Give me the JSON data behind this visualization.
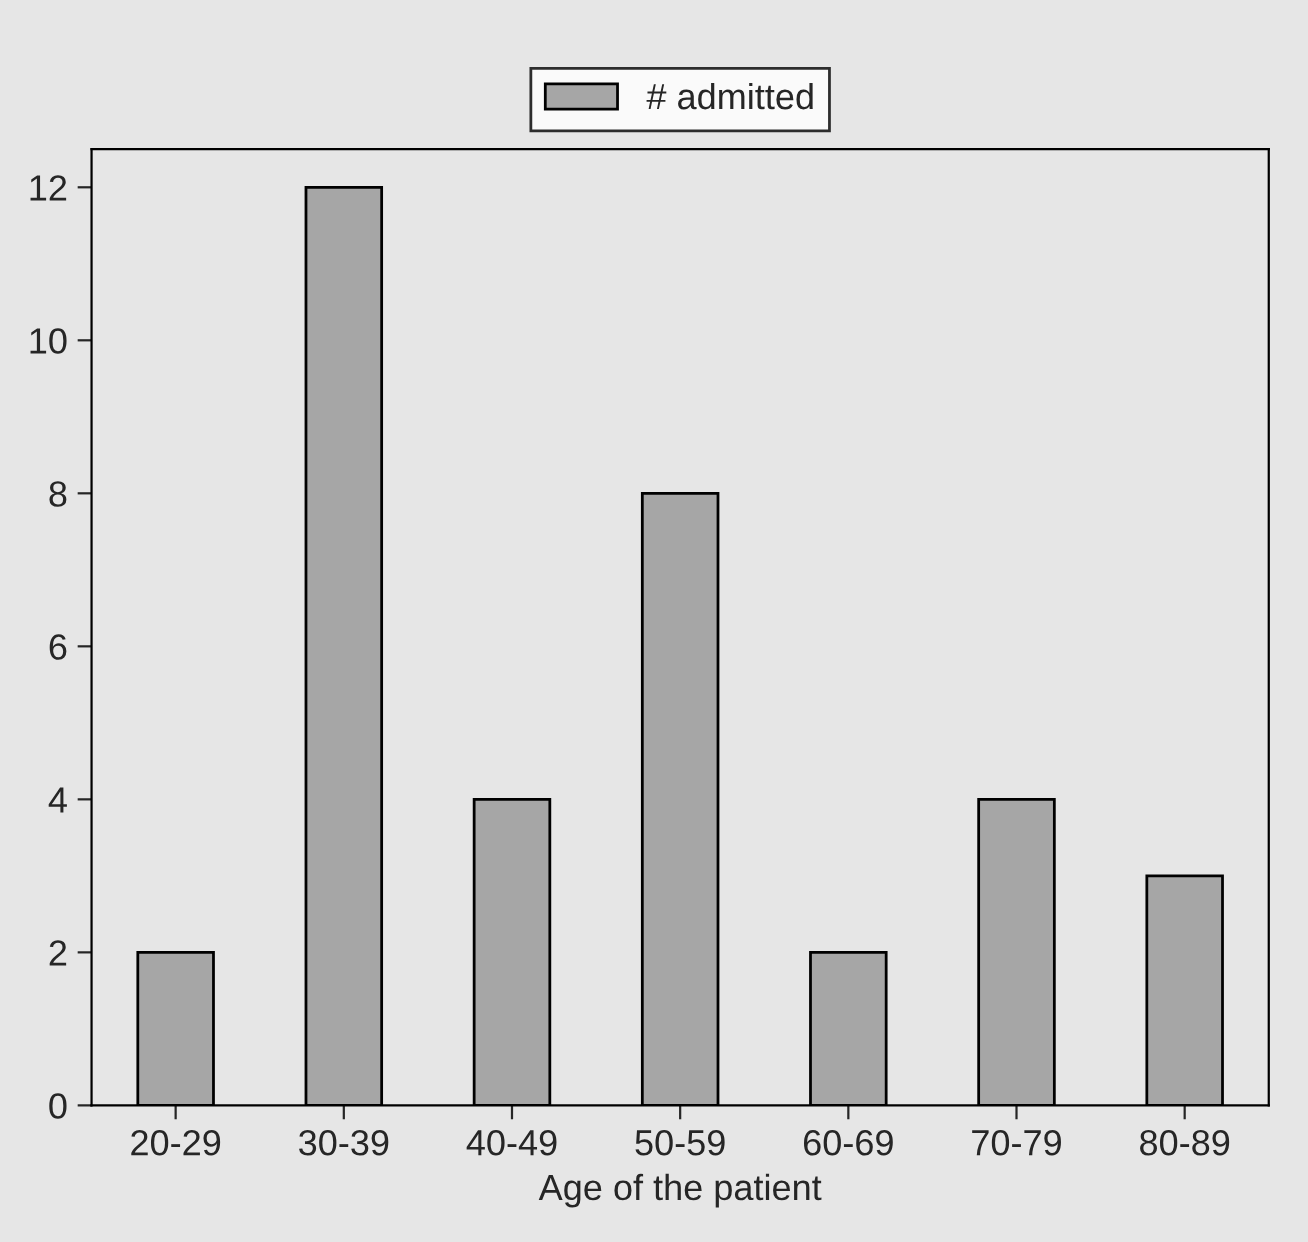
{
  "chart_data": {
    "type": "bar",
    "xlabel": "Age of the patient",
    "categories": [
      "20-29",
      "30-39",
      "40-49",
      "50-59",
      "60-69",
      "70-79",
      "80-89"
    ],
    "series": [
      {
        "name": "# admitted",
        "color": "#a6a6a6",
        "values": [
          2,
          12,
          4,
          8,
          2,
          4,
          3
        ]
      }
    ],
    "ylim": [
      0,
      12.5
    ],
    "yticks": [
      0,
      2,
      4,
      6,
      8,
      10,
      12
    ],
    "grid": false,
    "legend": "top"
  }
}
